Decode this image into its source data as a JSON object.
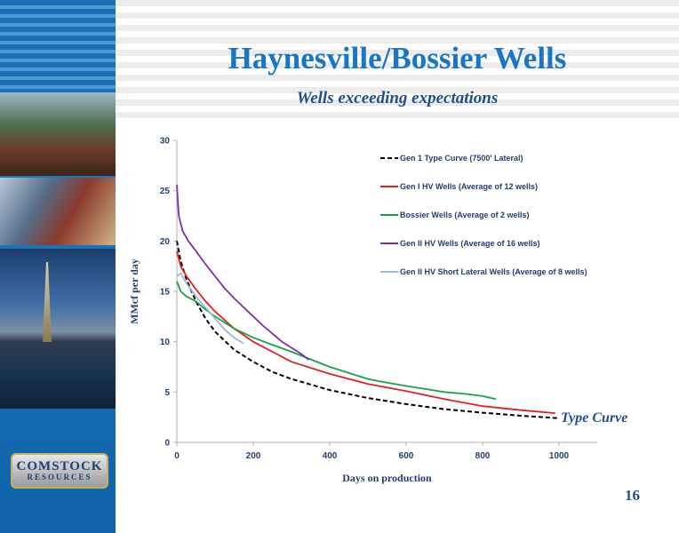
{
  "slide": {
    "title": "Haynesville/Bossier Wells",
    "subtitle": "Wells exceeding expectations",
    "page_number": "16",
    "logo": {
      "line1": "COMSTOCK",
      "line2": "RESOURCES"
    }
  },
  "chart_data": {
    "type": "line",
    "title": "",
    "xlabel": "Days on production",
    "ylabel": "MMcf per day",
    "xlim": [
      0,
      1100
    ],
    "ylim": [
      0,
      30
    ],
    "xticks": [
      0,
      200,
      400,
      600,
      800,
      1000
    ],
    "yticks": [
      0,
      5,
      10,
      15,
      20,
      25,
      30
    ],
    "grid": false,
    "legend_position": "top-right",
    "annotations": [
      {
        "text": "Type Curve",
        "x": 1000,
        "y": 2.2
      }
    ],
    "series": [
      {
        "name": "Gen 1 Type Curve (7500' Lateral)",
        "color": "#000000",
        "dashed": true,
        "x": [
          0,
          10,
          25,
          50,
          75,
          100,
          150,
          200,
          250,
          300,
          400,
          500,
          600,
          700,
          800,
          900,
          1000
        ],
        "y": [
          20.0,
          18.0,
          16.2,
          14.0,
          12.3,
          11.0,
          9.2,
          8.0,
          7.0,
          6.3,
          5.2,
          4.4,
          3.8,
          3.3,
          2.95,
          2.65,
          2.4
        ]
      },
      {
        "name": "Gen I HV Wells (Average of 12 wells)",
        "color": "#e02020",
        "dashed": false,
        "x": [
          0,
          10,
          25,
          50,
          75,
          100,
          150,
          200,
          250,
          300,
          400,
          500,
          600,
          700,
          800,
          900,
          990
        ],
        "y": [
          19.0,
          17.5,
          16.5,
          15.2,
          14.0,
          13.0,
          11.3,
          10.0,
          9.0,
          8.0,
          6.8,
          5.8,
          5.1,
          4.3,
          3.6,
          3.2,
          2.9
        ]
      },
      {
        "name": "Bossier Wells (Average of 2 wells)",
        "color": "#1aa048",
        "dashed": false,
        "x": [
          0,
          10,
          25,
          50,
          75,
          100,
          150,
          200,
          250,
          300,
          400,
          500,
          540,
          600,
          650,
          700,
          760,
          800,
          835
        ],
        "y": [
          16.0,
          15.0,
          14.5,
          14.0,
          13.2,
          12.5,
          11.3,
          10.4,
          9.7,
          9.0,
          7.5,
          6.3,
          6.0,
          5.6,
          5.3,
          5.0,
          4.8,
          4.6,
          4.3
        ]
      },
      {
        "name": "Gen II HV Wells (Average of 16 wells)",
        "color": "#7a2fa8",
        "dashed": false,
        "x": [
          0,
          5,
          15,
          30,
          50,
          75,
          100,
          125,
          150,
          175,
          200,
          225,
          250,
          275,
          300,
          325,
          345
        ],
        "y": [
          25.6,
          22.5,
          21.0,
          20.0,
          19.0,
          17.7,
          16.5,
          15.3,
          14.3,
          13.4,
          12.5,
          11.6,
          10.8,
          10.0,
          9.4,
          8.8,
          8.2
        ]
      },
      {
        "name": "Gen II HV Short Lateral Wells (Average of 8 wells)",
        "color": "#9bb8d8",
        "dashed": false,
        "x": [
          0,
          10,
          25,
          50,
          75,
          100,
          125,
          150,
          175
        ],
        "y": [
          16.5,
          16.8,
          15.8,
          14.5,
          13.4,
          12.3,
          11.2,
          10.4,
          9.8
        ]
      }
    ]
  }
}
